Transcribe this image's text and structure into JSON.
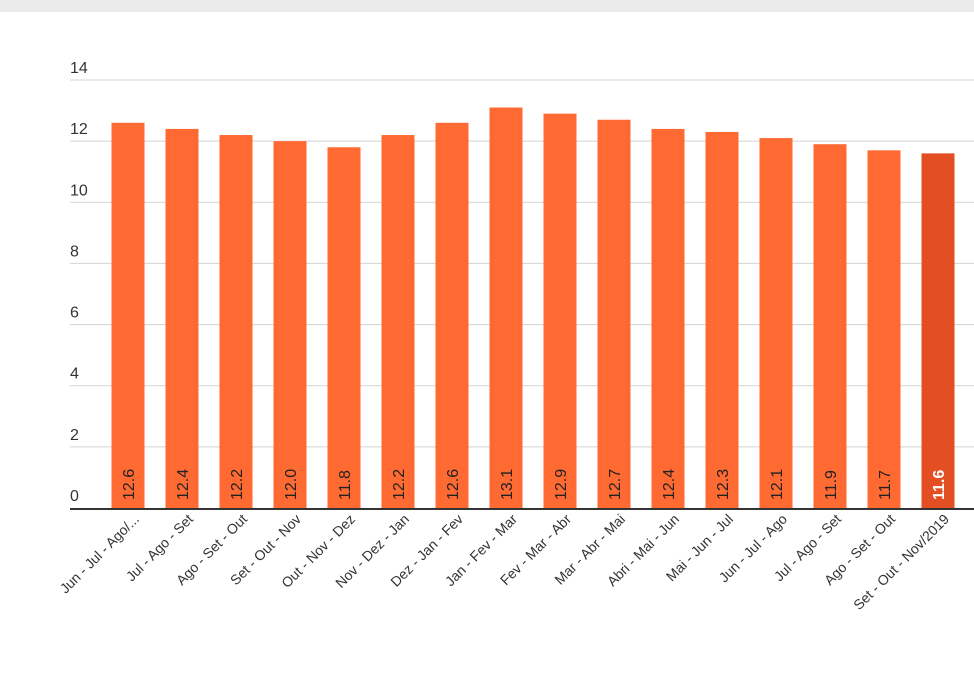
{
  "chart_data": {
    "type": "bar",
    "categories": [
      "Jun - Jul - Ago/...",
      "Jul - Ago - Set",
      "Ago - Set - Out",
      "Set - Out - Nov",
      "Out - Nov - Dez",
      "Nov - Dez - Jan",
      "Dez - Jan - Fev",
      "Jan - Fev - Mar",
      "Fev - Mar - Abr",
      "Mar - Abr - Mai",
      "Abri - Mai - Jun",
      "Mai - Jun - Jul",
      "Jun - Jul - Ago",
      "Jul - Ago - Set",
      "Ago - Set - Out",
      "Set - Out - Nov/2019"
    ],
    "values": [
      12.6,
      12.4,
      12.2,
      12.0,
      11.8,
      12.2,
      12.6,
      13.1,
      12.9,
      12.7,
      12.4,
      12.3,
      12.1,
      11.9,
      11.7,
      11.6
    ],
    "value_labels": [
      "12.6",
      "12.4",
      "12.2",
      "12.0",
      "11.8",
      "12.2",
      "12.6",
      "13.1",
      "12.9",
      "12.7",
      "12.4",
      "12.3",
      "12.1",
      "11.9",
      "11.7",
      "11.6"
    ],
    "ylim": [
      0,
      14
    ],
    "yticks": [
      "0",
      "2",
      "4",
      "6",
      "8",
      "10",
      "12",
      "14"
    ],
    "title": "",
    "xlabel": "",
    "ylabel": "",
    "grid": true,
    "colors": {
      "bar": "#ff6a33",
      "highlight_bar": "#e34f22",
      "label_text": "#222222",
      "highlight_label_text": "#ffffff",
      "gridline": "#d3d3d3",
      "baseline": "#333333"
    },
    "highlight_index": 15
  }
}
